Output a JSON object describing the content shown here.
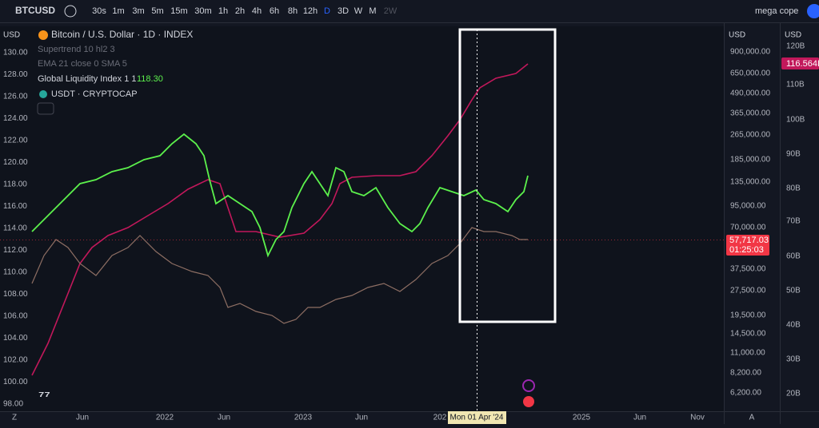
{
  "toolbar": {
    "symbol": "BTCUSD",
    "intervals": [
      "30s",
      "1m",
      "3m",
      "5m",
      "15m",
      "30m",
      "1h",
      "2h",
      "4h",
      "6h",
      "8h",
      "12h",
      "D",
      "3D",
      "W",
      "M",
      "2W"
    ],
    "user": "mega cope"
  },
  "legend": {
    "title": "Bitcoin / U.S. Dollar · 1D · INDEX",
    "indicators": [
      "Supertrend 10 hl2 3",
      "EMA 21 close 0 SMA 5"
    ],
    "gli": "Global Liquidity Index 1 1",
    "gli_value": "118.30",
    "usdt": "USDT · CRYPTOCAP"
  },
  "left_axis": {
    "unit": "USD",
    "labels": [
      "130.00",
      "128.00",
      "126.00",
      "124.00",
      "122.00",
      "120.00",
      "118.00",
      "116.00",
      "114.00",
      "112.00",
      "110.00",
      "108.00",
      "106.00",
      "104.00",
      "102.00",
      "100.00",
      "98.00"
    ]
  },
  "price_axis": {
    "unit": "USD",
    "labels": [
      "900,000.00",
      "650,000.00",
      "490,000.00",
      "365,000.00",
      "265,000.00",
      "185,000.00",
      "135,000.00",
      "95,000.00",
      "70,000.00",
      "37,500.00",
      "27,500.00",
      "19,500.00",
      "14,500.00",
      "11,000.00",
      "8,200.00",
      "6,200.00"
    ],
    "last_price": "57,717.03",
    "countdown": "01:25:03"
  },
  "usdt_axis": {
    "unit": "USD",
    "labels": [
      "120B",
      "110B",
      "100B",
      "90B",
      "80B",
      "70B",
      "60B",
      "50B",
      "40B",
      "30B",
      "20B"
    ],
    "last_value": "116.564B"
  },
  "time_axis": {
    "labels": [
      "Z",
      "Jun",
      "2022",
      "Jun",
      "2023",
      "Jun",
      "202",
      "2025",
      "Jun",
      "Nov",
      "A"
    ],
    "cursor": "Mon 01 Apr '24"
  }
}
